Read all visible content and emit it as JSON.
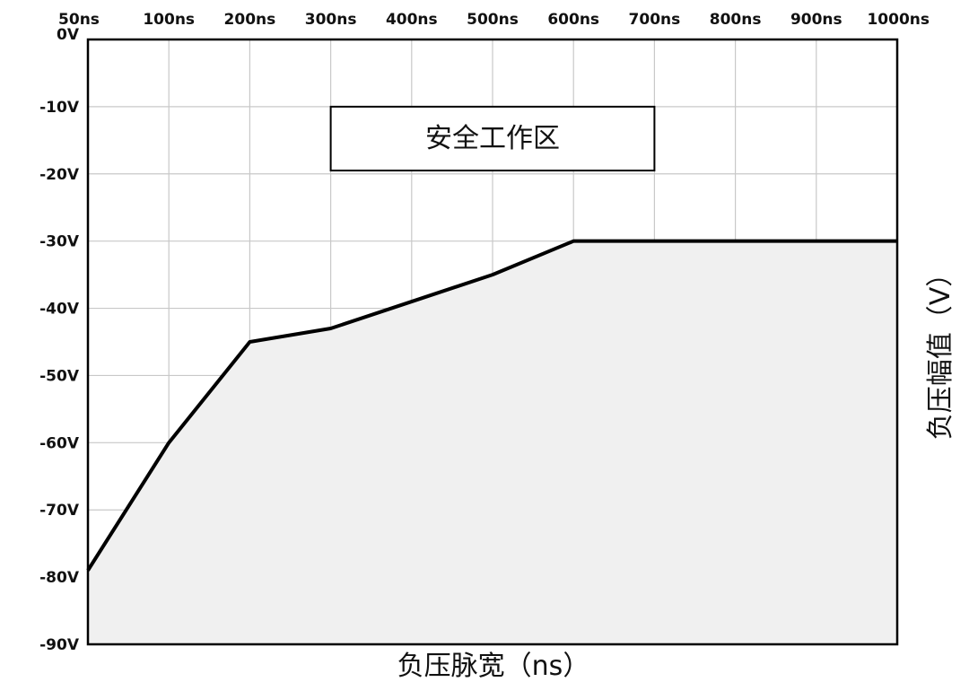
{
  "chart_data": {
    "type": "area",
    "title": "",
    "xlabel": "负压脉宽（ns）",
    "ylabel": "负压幅值（V）",
    "x_tick_labels": [
      "50ns",
      "100ns",
      "200ns",
      "300ns",
      "400ns",
      "500ns",
      "600ns",
      "700ns",
      "800ns",
      "900ns",
      "1000ns"
    ],
    "y_tick_labels": [
      "0V",
      "-10V",
      "-20V",
      "-30V",
      "-40V",
      "-50V",
      "-60V",
      "-70V",
      "-80V",
      "-90V"
    ],
    "y_ticks": [
      0,
      -10,
      -20,
      -30,
      -40,
      -50,
      -60,
      -70,
      -80,
      -90
    ],
    "ylim": [
      -90,
      0
    ],
    "x_axis_position": "top",
    "y_title_position": "right",
    "grid": true,
    "region_label": "安全工作区",
    "region_label_box": {
      "x_from": "300ns",
      "x_to": "700ns",
      "y_from": -10,
      "y_to": -19.5
    },
    "series": [
      {
        "x": [
          "50ns",
          "100ns",
          "200ns",
          "300ns",
          "400ns",
          "500ns",
          "600ns",
          "700ns",
          "800ns",
          "900ns",
          "1000ns"
        ],
        "values": [
          -79,
          -60,
          -45,
          -43,
          -39,
          -35,
          -30,
          -30,
          -30,
          -30,
          -30
        ]
      }
    ],
    "colors": {
      "fill": "#f0f0f0",
      "line": "#000000",
      "grid": "#c8c8c8",
      "frame": "#000000"
    }
  }
}
